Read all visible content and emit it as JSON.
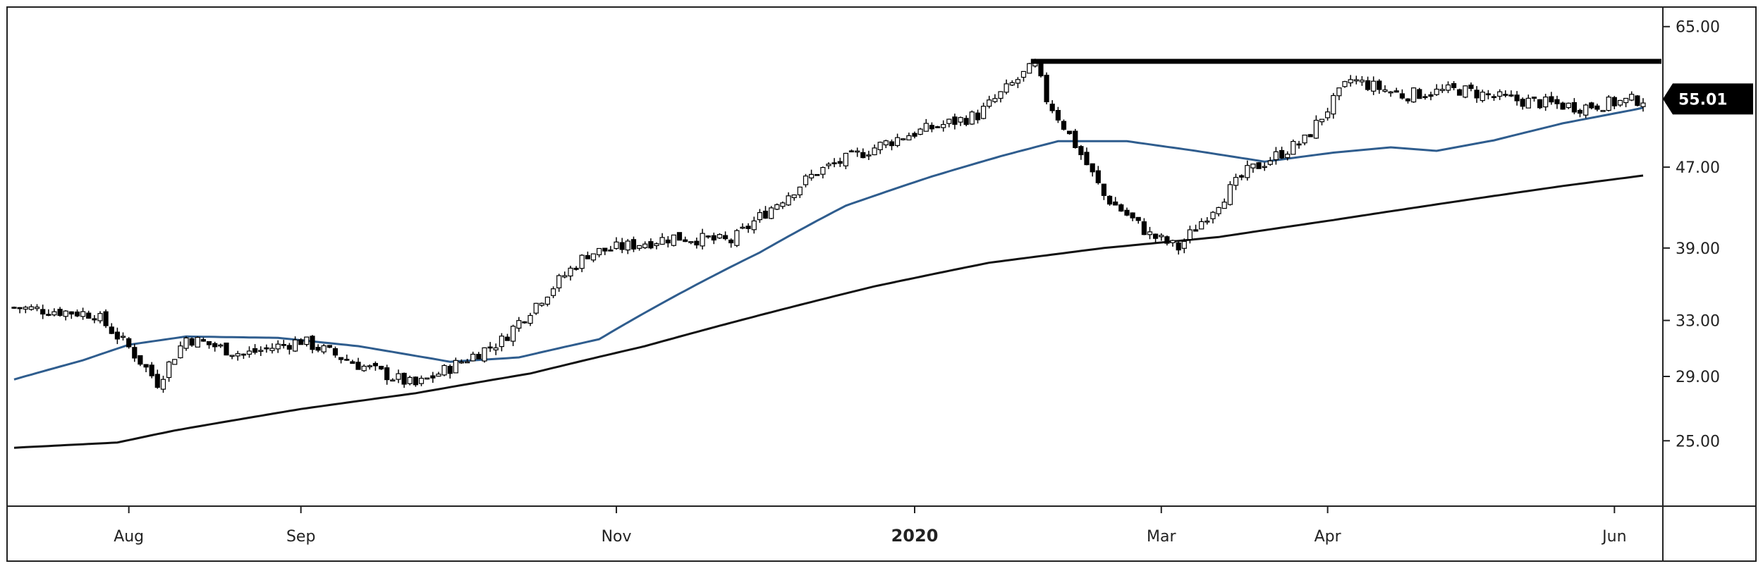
{
  "chart_data": {
    "type": "candlestick",
    "x_axis": {
      "tick_labels": [
        "Aug",
        "Sep",
        "Nov",
        "2020",
        "Mar",
        "Apr",
        "Jun"
      ],
      "bold_labels": [
        "2020"
      ]
    },
    "y_axis": {
      "position": "right",
      "scale": "log",
      "tick_labels": [
        "65.00",
        "55.01",
        "47.00",
        "39.00",
        "33.00",
        "29.00",
        "25.00"
      ],
      "ticks": [
        65,
        47,
        39,
        33,
        29,
        25
      ],
      "range": [
        21.5,
        68
      ]
    },
    "last_price": {
      "label": "55.01",
      "value": 55.01
    },
    "resistance_level": 60,
    "series": [
      {
        "kind": "ohlc",
        "up_color": "#ffffff",
        "down_color": "#000000"
      },
      {
        "kind": "moving-average-50",
        "color": "#2f5d8e"
      },
      {
        "kind": "moving-average-200",
        "color": "#111111"
      }
    ],
    "anchors": {
      "close": [
        [
          0,
          34.0
        ],
        [
          14,
          33.5
        ],
        [
          20,
          31.0
        ],
        [
          25,
          28.6
        ],
        [
          30,
          31.7
        ],
        [
          40,
          30.5
        ],
        [
          50,
          31.5
        ],
        [
          60,
          29.8
        ],
        [
          70,
          28.4
        ],
        [
          76,
          29.6
        ],
        [
          85,
          31.5
        ],
        [
          100,
          38.5
        ],
        [
          115,
          40.0
        ],
        [
          125,
          39.6
        ],
        [
          140,
          46.5
        ],
        [
          155,
          50.5
        ],
        [
          168,
          53.0
        ],
        [
          178,
          59.5
        ],
        [
          180,
          55.0
        ],
        [
          185,
          49.5
        ],
        [
          190,
          44.0
        ],
        [
          198,
          40.2
        ],
        [
          203,
          39.0
        ],
        [
          215,
          46.5
        ],
        [
          225,
          50.0
        ],
        [
          233,
          57.5
        ],
        [
          242,
          55.5
        ],
        [
          252,
          56.2
        ],
        [
          260,
          55.0
        ],
        [
          273,
          54.0
        ],
        [
          284,
          55.01
        ]
      ],
      "ma50": [
        [
          0,
          28.8
        ],
        [
          12,
          30.1
        ],
        [
          20,
          31.2
        ],
        [
          30,
          31.8
        ],
        [
          46,
          31.7
        ],
        [
          60,
          31.1
        ],
        [
          76,
          30.0
        ],
        [
          88,
          30.3
        ],
        [
          102,
          31.6
        ],
        [
          116,
          35.1
        ],
        [
          130,
          38.6
        ],
        [
          145,
          43.0
        ],
        [
          160,
          46.0
        ],
        [
          172,
          48.2
        ],
        [
          182,
          49.9
        ],
        [
          194,
          49.9
        ],
        [
          206,
          48.8
        ],
        [
          218,
          47.6
        ],
        [
          230,
          48.6
        ],
        [
          240,
          49.2
        ],
        [
          248,
          48.8
        ],
        [
          258,
          50.0
        ],
        [
          270,
          52.0
        ],
        [
          282,
          53.6
        ],
        [
          284,
          53.9
        ]
      ],
      "ma200": [
        [
          0,
          24.6
        ],
        [
          18,
          24.9
        ],
        [
          28,
          25.6
        ],
        [
          50,
          26.9
        ],
        [
          70,
          27.9
        ],
        [
          90,
          29.2
        ],
        [
          110,
          31.1
        ],
        [
          130,
          33.4
        ],
        [
          150,
          35.7
        ],
        [
          170,
          37.7
        ],
        [
          190,
          39.0
        ],
        [
          210,
          40.0
        ],
        [
          230,
          41.6
        ],
        [
          250,
          43.3
        ],
        [
          270,
          45.0
        ],
        [
          284,
          46.1
        ]
      ]
    },
    "bar_count": 285,
    "grid": false,
    "legend": "none"
  }
}
